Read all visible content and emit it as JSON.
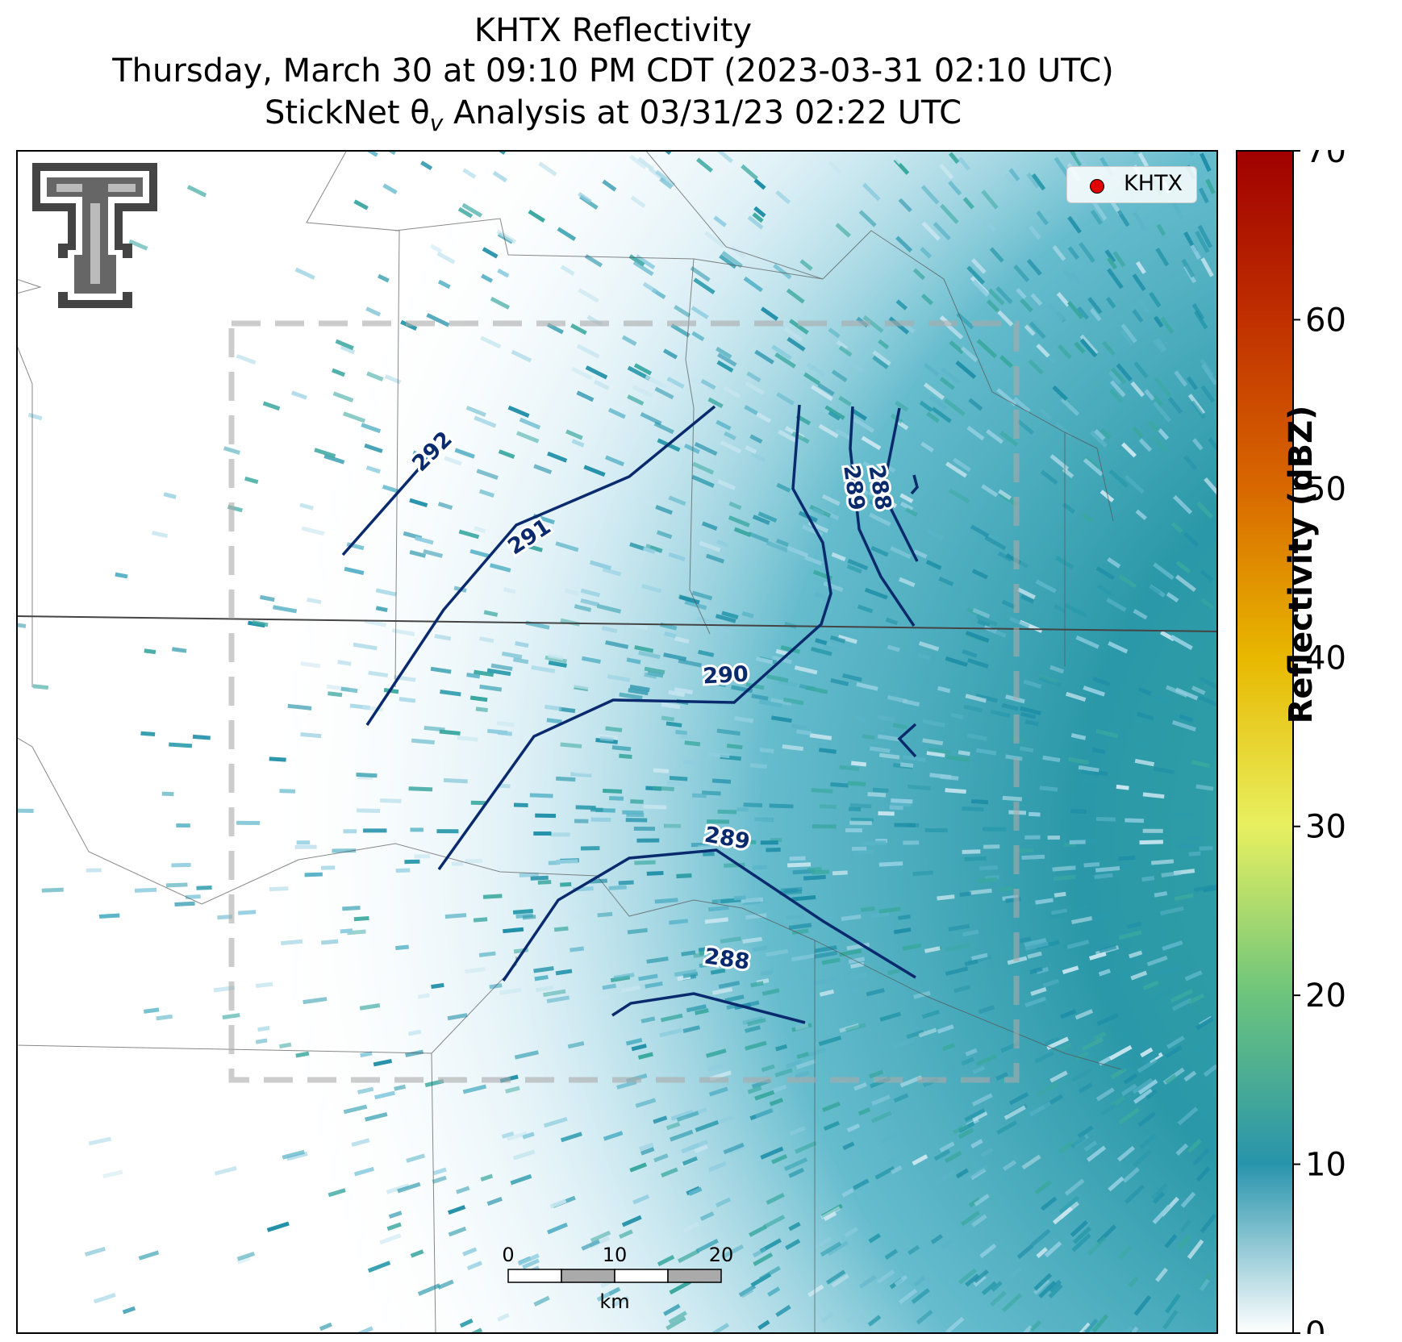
{
  "title": {
    "line1": "KHTX Reflectivity",
    "line2": "Thursday, March 30 at 09:10 PM CDT (2023-03-31 02:10 UTC)",
    "line3": "StickNet θv Analysis at 03/31/23 02:22 UTC"
  },
  "legend": {
    "label": "KHTX",
    "marker_color": "#e00000"
  },
  "colorbar": {
    "label": "Reflectivity (dBZ)",
    "min": 0,
    "max": 70,
    "ticks": [
      "0",
      "10",
      "20",
      "30",
      "40",
      "50",
      "60",
      "70"
    ],
    "colors": [
      "#ffffff",
      "#2894ac",
      "#6cc47c",
      "#e8f060",
      "#e8b800",
      "#d86800",
      "#c03000",
      "#a00000"
    ]
  },
  "contours": {
    "color": "#0a2a6e",
    "labels": [
      "292",
      "291",
      "290",
      "289",
      "288",
      "289",
      "288"
    ]
  },
  "scalebar": {
    "ticks": [
      "0",
      "10",
      "20"
    ],
    "unit": "km"
  },
  "logo": {
    "name": "texas-tech-double-t-logo"
  }
}
